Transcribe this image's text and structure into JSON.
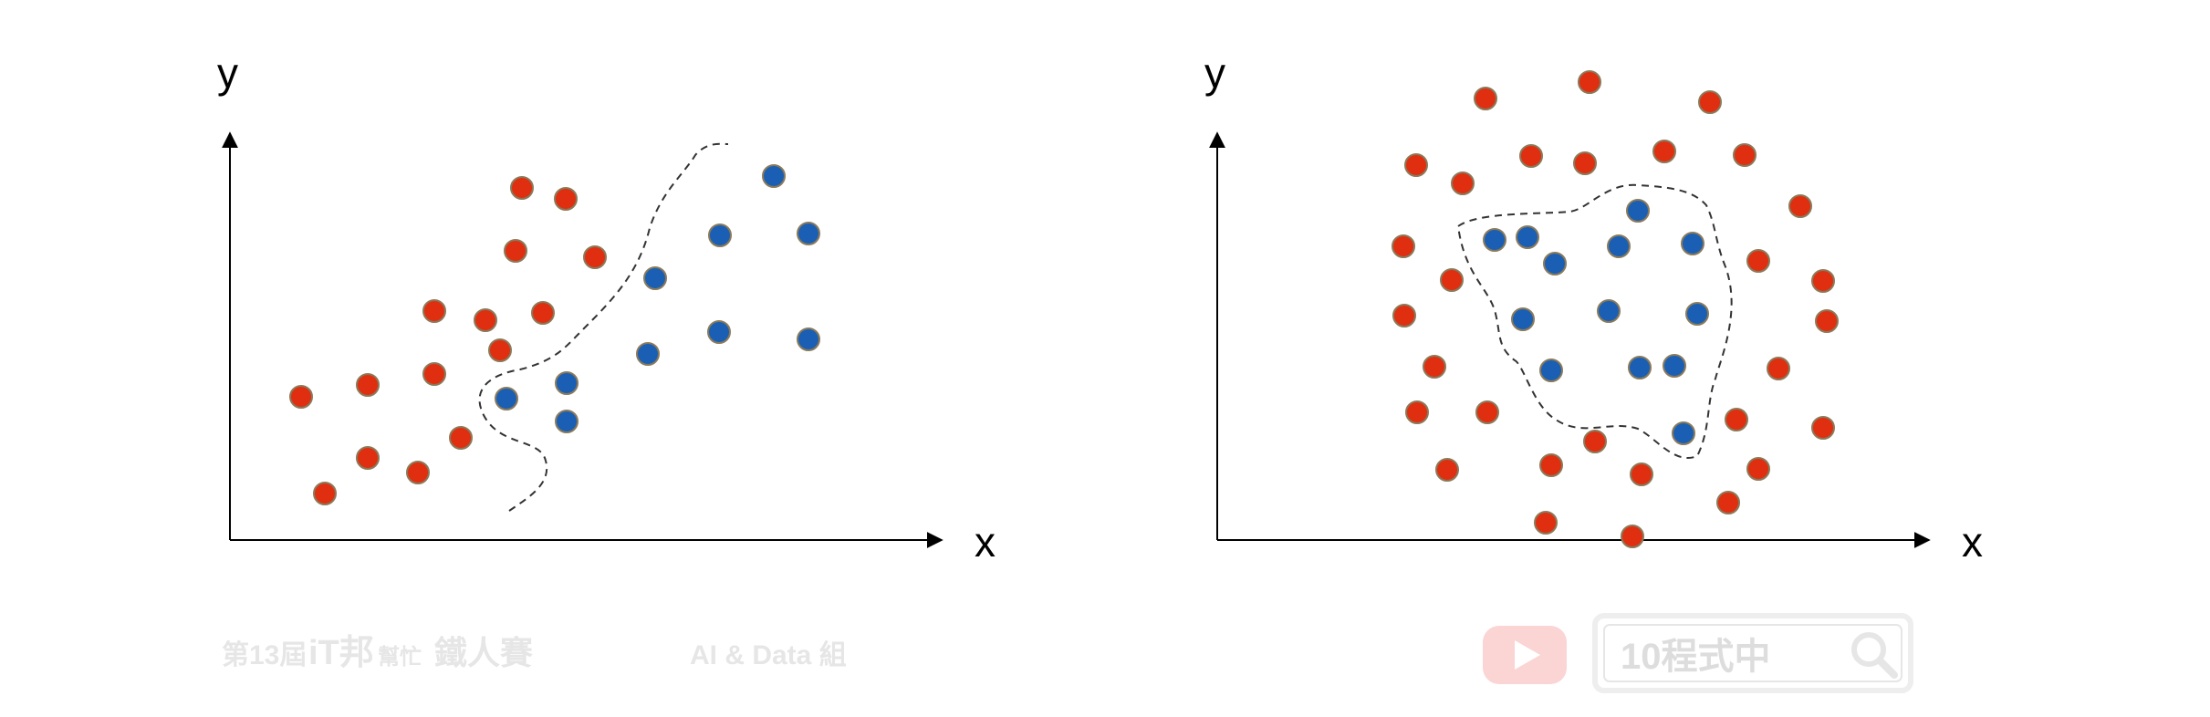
{
  "colors": {
    "red_point": "#e02e10",
    "blue_point": "#1a5fb4",
    "point_outline": "#8a7a5a",
    "boundary": "#333333",
    "axis": "#000000",
    "watermark": "#e2e2e2"
  },
  "panels": [
    {
      "id": "left",
      "x_axis_label": "x",
      "y_axis_label": "y",
      "boundary_style": "dashed curve separating red from blue",
      "red_points": [],
      "blue_points": []
    },
    {
      "id": "right",
      "x_axis_label": "x",
      "y_axis_label": "y",
      "boundary_style": "dashed closed curve enclosing blue",
      "red_points": [],
      "blue_points": []
    }
  ],
  "watermark": {
    "contest_prefix": "第13屆",
    "contest_brand": "iT邦",
    "contest_brand_small": "幫忙",
    "contest_name": "鐵人賽",
    "track": "AI & Data 組",
    "youtube_icon": "youtube-play-icon",
    "search_text": "10程式中",
    "search_icon": "magnifier-icon"
  }
}
